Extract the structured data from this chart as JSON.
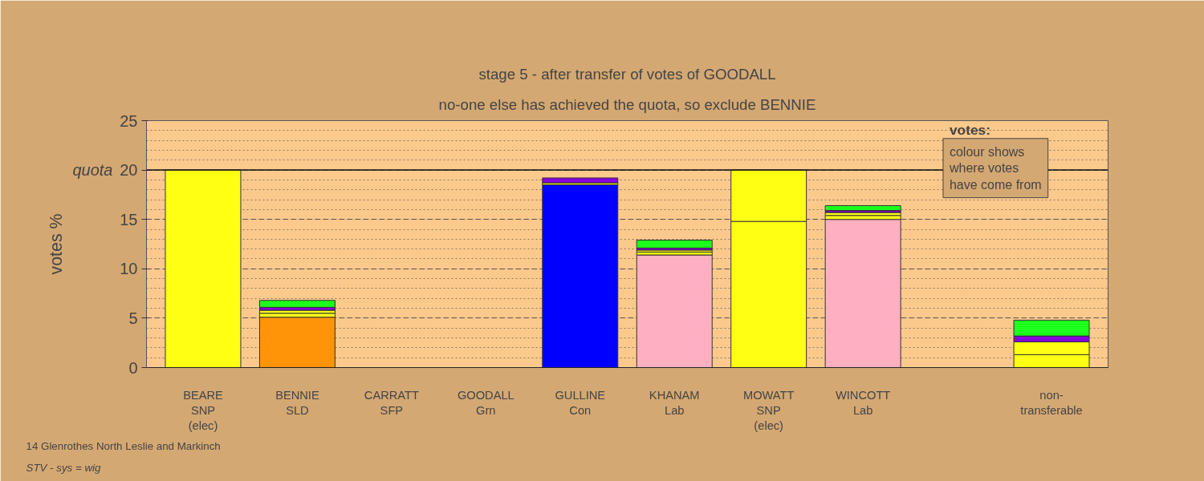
{
  "chart_data": {
    "type": "bar",
    "stacked": true,
    "title": "stage 5 - after transfer of votes of GOODALL",
    "subtitle": "no-one else has achieved the quota, so exclude BENNIE",
    "ylabel": "votes %",
    "categories": [
      "BEARE\nSNP\n(elec)",
      "BENNIE\nSLD",
      "CARRATT\nSFP",
      "GOODALL\nGrn",
      "GULLINE\nCon",
      "KHANAM\nLab",
      "MOWATT\nSNP\n(elec)",
      "WINCOTT\nLab",
      null,
      "non-\ntransferable"
    ],
    "series": [
      {
        "colors": [
          "#ffff14",
          "#ff9408",
          "#8800dd",
          "#1cff1c",
          "#0000ff",
          "#ffb0c0",
          "#ffff14",
          "#ffb0c0",
          null,
          null
        ],
        "values": [
          20,
          5.1,
          0,
          0,
          18.5,
          11.4,
          14.8,
          15.0,
          null,
          null
        ]
      },
      {
        "color": "#ffff14",
        "values": [
          null,
          0.4,
          null,
          null,
          0.2,
          0.3,
          5.2,
          0.4,
          null,
          1.3
        ]
      },
      {
        "color": "#ffff14",
        "values": [
          null,
          0.3,
          null,
          null,
          null,
          0.2,
          null,
          0.3,
          null,
          1.3
        ]
      },
      {
        "color": "#8800dd",
        "values": [
          null,
          0.3,
          null,
          null,
          0.5,
          0.2,
          null,
          0.2,
          null,
          0.6
        ]
      },
      {
        "color": "#1cff1c",
        "values": [
          null,
          0.7,
          null,
          null,
          null,
          0.8,
          null,
          0.5,
          null,
          1.6
        ]
      }
    ],
    "ylim": [
      0,
      25
    ],
    "yticks": [
      0,
      5,
      10,
      15,
      20,
      25
    ],
    "grid": "y",
    "ref_lines": [
      {
        "axis": "y",
        "value": 20,
        "label": "quota"
      }
    ],
    "annotations": [
      "votes:",
      "colour shows\nwhere votes\nhave come from",
      "14 Glenrothes North Leslie and Markinch",
      "STV - sys = wig"
    ]
  }
}
